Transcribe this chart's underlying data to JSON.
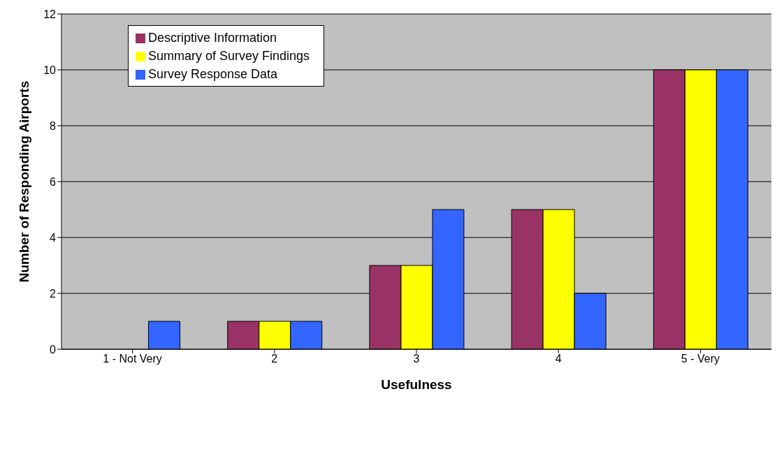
{
  "chart_data": {
    "type": "bar",
    "xlabel": "Usefulness",
    "ylabel": "Number of Responding Airports",
    "categories": [
      "1 - Not Very",
      "2",
      "3",
      "4",
      "5 - Very"
    ],
    "series": [
      {
        "name": "Descriptive Information",
        "color": "#993366",
        "values": [
          0,
          1,
          3,
          5,
          10
        ]
      },
      {
        "name": "Summary of Survey Findings",
        "color": "#ffff00",
        "values": [
          0,
          1,
          3,
          5,
          10
        ]
      },
      {
        "name": "Survey Response Data",
        "color": "#3366ff",
        "values": [
          1,
          1,
          5,
          2,
          10
        ]
      }
    ],
    "ylim": [
      0,
      12
    ],
    "yticks": [
      0,
      2,
      4,
      6,
      8,
      10,
      12
    ],
    "grid": "y",
    "legend": "top left"
  }
}
